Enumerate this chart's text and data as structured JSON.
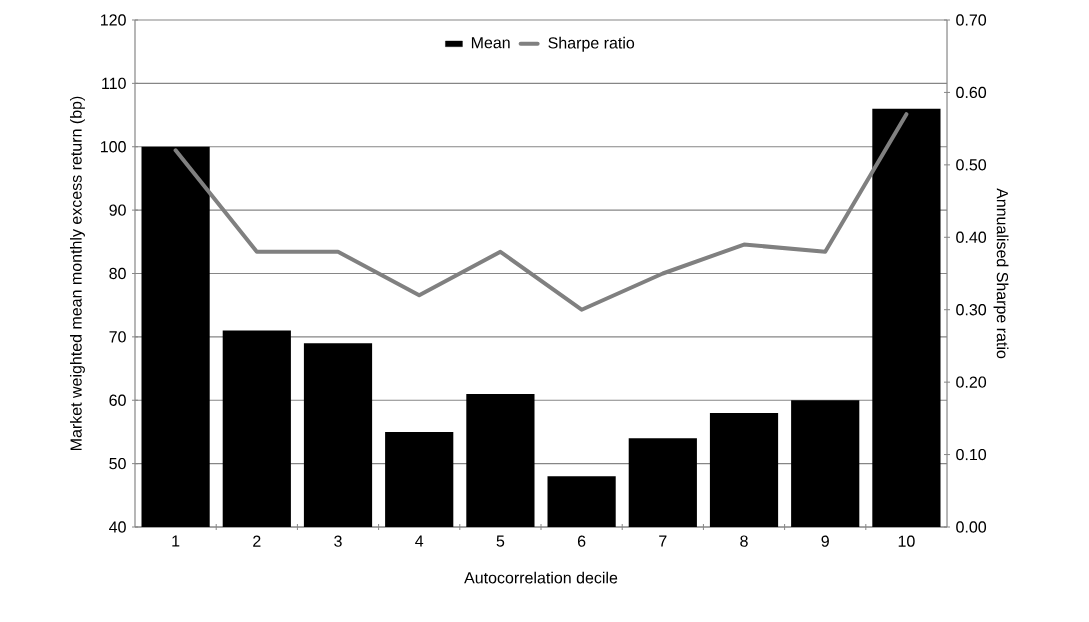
{
  "chart_data": {
    "type": "bar",
    "xlabel": "Autocorrelation decile",
    "ylabel": "Market weighted mean monthly excess return (bp)",
    "y2label": "Annualised Sharpe ratio",
    "categories": [
      "1",
      "2",
      "3",
      "4",
      "5",
      "6",
      "7",
      "8",
      "9",
      "10"
    ],
    "series": [
      {
        "name": "Mean",
        "color": "#000000",
        "values": [
          100,
          71,
          69,
          55,
          61,
          48,
          54,
          58,
          60,
          106
        ]
      },
      {
        "name": "Sharpe ratio",
        "type": "line",
        "axis": "y2",
        "color": "#808080",
        "values": [
          0.52,
          0.38,
          0.38,
          0.32,
          0.38,
          0.3,
          0.35,
          0.39,
          0.38,
          0.57
        ]
      }
    ],
    "ylim": [
      40,
      120
    ],
    "yticks": [
      40,
      50,
      60,
      70,
      80,
      90,
      100,
      110,
      120
    ],
    "y2lim": [
      0,
      0.7
    ],
    "y2ticks": [
      {
        "value": 0,
        "label": "0.00"
      },
      {
        "value": 0.1,
        "label": "0.10"
      },
      {
        "value": 0.2,
        "label": "0.20"
      },
      {
        "value": 0.3,
        "label": "0.30"
      },
      {
        "value": 0.4,
        "label": "0.40"
      },
      {
        "value": 0.5,
        "label": "0.50"
      },
      {
        "value": 0.6,
        "label": "0.60"
      },
      {
        "value": 0.7,
        "label": "0.70"
      }
    ],
    "grid": "y",
    "legend": "top"
  }
}
